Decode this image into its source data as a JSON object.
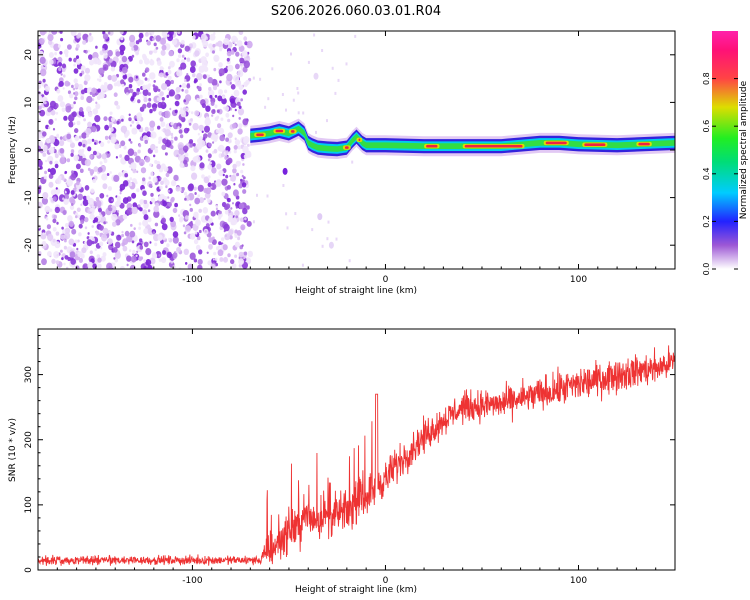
{
  "title": "S206.2026.060.03.01.R04",
  "chart_data": [
    {
      "type": "heatmap",
      "name": "spectrogram",
      "xlabel": "Height of straight line (km)",
      "ylabel": "Frequency (Hz)",
      "xlim": [
        -180,
        150
      ],
      "ylim": [
        -25,
        25
      ],
      "xticks": [
        -100,
        0,
        100
      ],
      "xtick_labels": [
        "-100",
        "0",
        "100"
      ],
      "yticks": [
        -20,
        -10,
        0,
        10,
        20
      ],
      "ytick_labels": [
        "-20",
        "-10",
        "0",
        "10",
        "20"
      ],
      "noise_region_x": [
        -180,
        -70
      ],
      "signal_start_x": -70,
      "tone_track": {
        "x": [
          -70,
          -65,
          -60,
          -55,
          -50,
          -45,
          -42,
          -40,
          -38,
          -35,
          -30,
          -25,
          -20,
          -17,
          -15,
          -12,
          -10,
          -5,
          0,
          20,
          40,
          60,
          80,
          90,
          100,
          120,
          150
        ],
        "freq": [
          3.0,
          3.2,
          3.5,
          4.0,
          3.5,
          4.5,
          3.5,
          1.5,
          1.0,
          0.5,
          0.3,
          0.2,
          0.5,
          2.0,
          2.8,
          1.5,
          1.0,
          1.0,
          1.0,
          0.8,
          0.8,
          0.8,
          1.5,
          1.5,
          1.2,
          1.0,
          1.5
        ]
      },
      "colorbar": {
        "label": "Normalized spectral amplitude",
        "range": [
          0,
          1
        ],
        "ticks": [
          0.0,
          0.2,
          0.4,
          0.6,
          0.8
        ],
        "tick_labels": [
          "0.0",
          "0.2",
          "0.4",
          "0.6",
          "0.8"
        ]
      }
    },
    {
      "type": "line",
      "name": "snr",
      "xlabel": "Height of straight line (km)",
      "ylabel": "SNR (10 * v/v)",
      "xlim": [
        -180,
        150
      ],
      "ylim": [
        0,
        370
      ],
      "xticks": [
        -100,
        0,
        100
      ],
      "xtick_labels": [
        "-100",
        "0",
        "100"
      ],
      "yticks": [
        0,
        100,
        200,
        300
      ],
      "ytick_labels": [
        "0",
        "100",
        "200",
        "300"
      ],
      "color": "#ee3333",
      "trend": {
        "x": [
          -180,
          -65,
          -60,
          -50,
          -40,
          -30,
          -20,
          -10,
          0,
          10,
          20,
          30,
          40,
          60,
          80,
          100,
          120,
          140,
          150
        ],
        "y": [
          15,
          15,
          30,
          60,
          80,
          80,
          90,
          115,
          140,
          175,
          205,
          230,
          250,
          255,
          270,
          285,
          300,
          310,
          320
        ]
      },
      "spread": {
        "x": [
          -180,
          -65,
          -60,
          -40,
          -20,
          0,
          30,
          60,
          100,
          150
        ],
        "y": [
          10,
          10,
          45,
          50,
          45,
          40,
          35,
          35,
          40,
          35
        ]
      }
    }
  ]
}
